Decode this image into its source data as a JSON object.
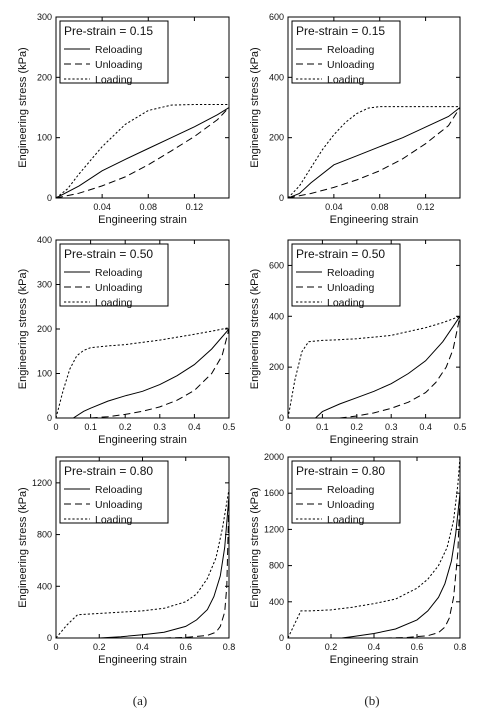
{
  "panel_labels": [
    "(a)",
    "(b)"
  ],
  "chart_data": [
    {
      "type": "line",
      "legend_title": "Pre-strain = 0.15",
      "xlabel": "Engineering strain",
      "ylabel": "Engineering stress (kPa)",
      "xlim": [
        0,
        0.15
      ],
      "ylim": [
        0,
        300
      ],
      "xticks": [
        0.04,
        0.08,
        0.12
      ],
      "yticks": [
        0,
        100,
        200,
        300
      ],
      "grid": false,
      "legend_position": "top-left",
      "series": [
        {
          "name": "Reloading",
          "dash": "solid",
          "x": [
            0,
            0.02,
            0.04,
            0.06,
            0.08,
            0.1,
            0.12,
            0.14,
            0.15
          ],
          "y": [
            0,
            20,
            45,
            64,
            82,
            100,
            118,
            138,
            150
          ]
        },
        {
          "name": "Unloading",
          "dash": "dashed",
          "x": [
            0,
            0.02,
            0.04,
            0.06,
            0.08,
            0.1,
            0.12,
            0.14,
            0.15
          ],
          "y": [
            0,
            8,
            20,
            35,
            55,
            78,
            102,
            130,
            150
          ]
        },
        {
          "name": "Loading",
          "dash": "dotted",
          "x": [
            0,
            0.01,
            0.02,
            0.04,
            0.06,
            0.08,
            0.1,
            0.12,
            0.15
          ],
          "y": [
            0,
            15,
            40,
            85,
            122,
            145,
            154,
            155,
            155
          ]
        }
      ]
    },
    {
      "type": "line",
      "legend_title": "Pre-strain = 0.15",
      "xlabel": "Engineering strain",
      "ylabel": "Engineering stress (kPa)",
      "xlim": [
        0,
        0.15
      ],
      "ylim": [
        0,
        600
      ],
      "xticks": [
        0.04,
        0.08,
        0.12
      ],
      "yticks": [
        0,
        200,
        400,
        600
      ],
      "grid": false,
      "legend_position": "top-left",
      "series": [
        {
          "name": "Reloading",
          "dash": "solid",
          "x": [
            0,
            0.01,
            0.02,
            0.04,
            0.06,
            0.08,
            0.1,
            0.12,
            0.14,
            0.15
          ],
          "y": [
            0,
            15,
            50,
            110,
            140,
            170,
            200,
            235,
            270,
            300
          ]
        },
        {
          "name": "Unloading",
          "dash": "dashed",
          "x": [
            0,
            0.02,
            0.04,
            0.06,
            0.08,
            0.1,
            0.12,
            0.14,
            0.15
          ],
          "y": [
            0,
            15,
            35,
            60,
            90,
            130,
            180,
            240,
            300
          ]
        },
        {
          "name": "Loading",
          "dash": "dotted",
          "x": [
            0,
            0.01,
            0.02,
            0.03,
            0.04,
            0.05,
            0.06,
            0.07,
            0.08,
            0.1,
            0.12,
            0.15
          ],
          "y": [
            0,
            40,
            100,
            160,
            210,
            250,
            280,
            298,
            303,
            303,
            303,
            303
          ]
        }
      ]
    },
    {
      "type": "line",
      "legend_title": "Pre-strain = 0.50",
      "xlabel": "Engineering strain",
      "ylabel": "Engineering stress (kPa)",
      "xlim": [
        0,
        0.5
      ],
      "ylim": [
        0,
        400
      ],
      "xticks": [
        0,
        0.1,
        0.2,
        0.3,
        0.4,
        0.5
      ],
      "yticks": [
        0,
        100,
        200,
        300,
        400
      ],
      "grid": false,
      "legend_position": "top-left",
      "series": [
        {
          "name": "Reloading",
          "dash": "solid",
          "x": [
            0.05,
            0.08,
            0.1,
            0.15,
            0.2,
            0.25,
            0.3,
            0.35,
            0.4,
            0.45,
            0.5
          ],
          "y": [
            0,
            15,
            22,
            38,
            50,
            60,
            75,
            95,
            120,
            155,
            200
          ]
        },
        {
          "name": "Unloading",
          "dash": "dashed",
          "x": [
            0.1,
            0.15,
            0.2,
            0.25,
            0.3,
            0.35,
            0.4,
            0.45,
            0.48,
            0.5
          ],
          "y": [
            0,
            3,
            8,
            15,
            25,
            40,
            62,
            100,
            140,
            200
          ]
        },
        {
          "name": "Loading",
          "dash": "dotted",
          "x": [
            0,
            0.02,
            0.04,
            0.06,
            0.08,
            0.1,
            0.15,
            0.2,
            0.3,
            0.4,
            0.45,
            0.5
          ],
          "y": [
            0,
            60,
            110,
            140,
            152,
            158,
            162,
            165,
            175,
            188,
            195,
            203
          ]
        }
      ]
    },
    {
      "type": "line",
      "legend_title": "Pre-strain = 0.50",
      "xlabel": "Engineering strain",
      "ylabel": "Engineering stress (kPa)",
      "xlim": [
        0,
        0.5
      ],
      "ylim": [
        0,
        700
      ],
      "xticks": [
        0,
        0.1,
        0.2,
        0.3,
        0.4,
        0.5
      ],
      "yticks": [
        0,
        200,
        400,
        600
      ],
      "grid": false,
      "legend_position": "top-left",
      "series": [
        {
          "name": "Reloading",
          "dash": "solid",
          "x": [
            0.08,
            0.1,
            0.15,
            0.2,
            0.25,
            0.3,
            0.35,
            0.4,
            0.45,
            0.5
          ],
          "y": [
            0,
            25,
            55,
            80,
            105,
            135,
            175,
            225,
            300,
            400
          ]
        },
        {
          "name": "Unloading",
          "dash": "dashed",
          "x": [
            0.15,
            0.2,
            0.25,
            0.3,
            0.35,
            0.4,
            0.43,
            0.46,
            0.48,
            0.5
          ],
          "y": [
            0,
            8,
            20,
            38,
            62,
            100,
            140,
            200,
            270,
            400
          ]
        },
        {
          "name": "Loading",
          "dash": "dotted",
          "x": [
            0,
            0.02,
            0.04,
            0.06,
            0.1,
            0.15,
            0.2,
            0.25,
            0.3,
            0.35,
            0.4,
            0.45,
            0.5
          ],
          "y": [
            0,
            150,
            260,
            300,
            305,
            308,
            312,
            318,
            325,
            340,
            355,
            375,
            400
          ]
        }
      ]
    },
    {
      "type": "line",
      "legend_title": "Pre-strain = 0.80",
      "xlabel": "Engineering strain",
      "ylabel": "Engineering stress (kPa)",
      "xlim": [
        0,
        0.8
      ],
      "ylim": [
        0,
        1400
      ],
      "xticks": [
        0,
        0.2,
        0.4,
        0.6,
        0.8
      ],
      "yticks": [
        0,
        400,
        800,
        1200
      ],
      "grid": false,
      "legend_position": "top-left",
      "series": [
        {
          "name": "Reloading",
          "dash": "solid",
          "x": [
            0.2,
            0.3,
            0.4,
            0.5,
            0.6,
            0.65,
            0.7,
            0.73,
            0.76,
            0.78,
            0.8
          ],
          "y": [
            0,
            10,
            25,
            45,
            90,
            140,
            220,
            320,
            480,
            700,
            1100
          ]
        },
        {
          "name": "Unloading",
          "dash": "dashed",
          "x": [
            0.5,
            0.6,
            0.7,
            0.74,
            0.76,
            0.78,
            0.79,
            0.8
          ],
          "y": [
            0,
            5,
            20,
            45,
            90,
            200,
            400,
            1100
          ]
        },
        {
          "name": "Loading",
          "dash": "dotted",
          "x": [
            0,
            0.05,
            0.1,
            0.2,
            0.3,
            0.4,
            0.5,
            0.6,
            0.65,
            0.7,
            0.74,
            0.77,
            0.79,
            0.8
          ],
          "y": [
            0,
            100,
            180,
            190,
            200,
            210,
            230,
            280,
            340,
            460,
            620,
            850,
            1050,
            1150
          ]
        }
      ]
    },
    {
      "type": "line",
      "legend_title": "Pre-strain = 0.80",
      "xlabel": "Engineering strain",
      "ylabel": "Engineering stress (kPa)",
      "xlim": [
        0,
        0.8
      ],
      "ylim": [
        0,
        2000
      ],
      "xticks": [
        0,
        0.2,
        0.4,
        0.6,
        0.8
      ],
      "yticks": [
        0,
        400,
        800,
        1200,
        1600,
        2000
      ],
      "grid": false,
      "legend_position": "top-left",
      "series": [
        {
          "name": "Reloading",
          "dash": "solid",
          "x": [
            0.25,
            0.3,
            0.4,
            0.5,
            0.6,
            0.65,
            0.7,
            0.73,
            0.76,
            0.78,
            0.8
          ],
          "y": [
            0,
            15,
            50,
            100,
            200,
            300,
            450,
            600,
            850,
            1150,
            1600
          ]
        },
        {
          "name": "Unloading",
          "dash": "dashed",
          "x": [
            0.45,
            0.55,
            0.65,
            0.7,
            0.73,
            0.75,
            0.77,
            0.79,
            0.8
          ],
          "y": [
            0,
            5,
            25,
            60,
            120,
            220,
            450,
            950,
            1600
          ]
        },
        {
          "name": "Loading",
          "dash": "dotted",
          "x": [
            0,
            0.03,
            0.06,
            0.1,
            0.2,
            0.3,
            0.4,
            0.5,
            0.6,
            0.65,
            0.7,
            0.74,
            0.77,
            0.79,
            0.8
          ],
          "y": [
            0,
            150,
            300,
            300,
            310,
            340,
            380,
            430,
            550,
            650,
            800,
            1000,
            1300,
            1700,
            2000
          ]
        }
      ]
    }
  ]
}
